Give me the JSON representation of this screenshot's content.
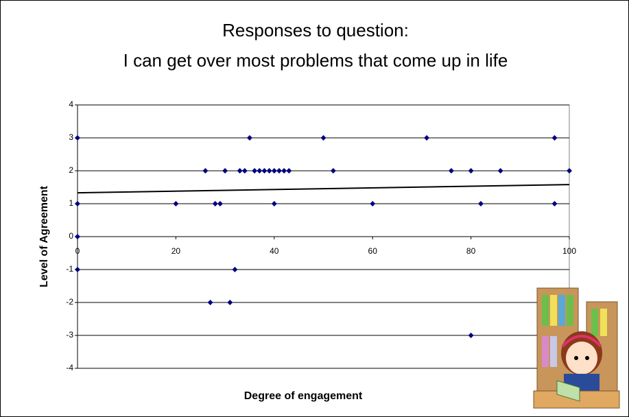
{
  "chart_data": {
    "type": "scatter",
    "title": [
      "Responses to question:",
      "I can get over most problems that come up in life"
    ],
    "x_label": "Degree of engagement",
    "y_label": "Level of Agreement",
    "series": [
      {
        "color": "#000080",
        "x": [
          0,
          35,
          50,
          71,
          97,
          26,
          30,
          33,
          34,
          36,
          37,
          38,
          39,
          40,
          41,
          42,
          43,
          52,
          76,
          80,
          86,
          100,
          0,
          20,
          28,
          29,
          40,
          60,
          82,
          97,
          0,
          0,
          32,
          27,
          31,
          80
        ],
        "values": [
          3,
          3,
          3,
          3,
          3,
          2,
          2,
          2,
          2,
          2,
          2,
          2,
          2,
          2,
          2,
          2,
          2,
          2,
          2,
          2,
          2,
          2,
          1,
          1,
          1,
          1,
          1,
          1,
          1,
          1,
          0,
          -1,
          -1,
          -2,
          -2,
          -3
        ]
      }
    ],
    "trendline": {
      "color": "#000000",
      "x": [
        0,
        100
      ],
      "values": [
        1.33,
        1.58
      ]
    },
    "xlim": [
      0,
      100
    ],
    "xticks": [
      0,
      20,
      40,
      60,
      80,
      100
    ],
    "ylim": [
      -4,
      4
    ],
    "yticks": [
      -4,
      -3,
      -2,
      -1,
      0,
      1,
      2,
      3,
      4
    ],
    "grid": true
  }
}
